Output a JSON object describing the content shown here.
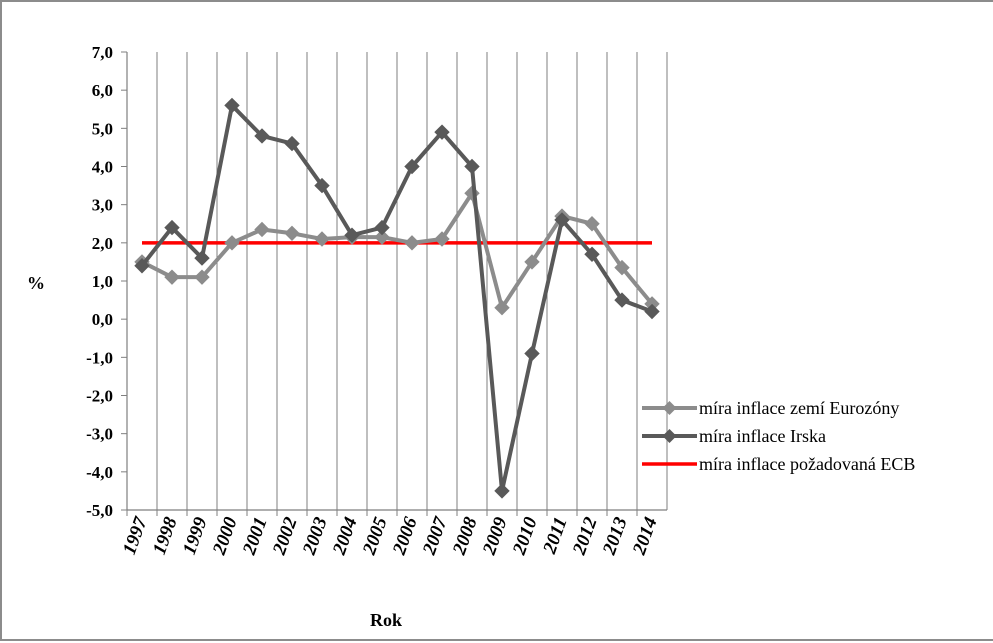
{
  "chart_data": {
    "type": "line",
    "title": "",
    "xlabel": "Rok",
    "ylabel": "%",
    "ylim": [
      -5.0,
      7.0
    ],
    "ytick_step": 1.0,
    "yticks": [
      "7,0",
      "6,0",
      "5,0",
      "4,0",
      "3,0",
      "2,0",
      "1,0",
      "0,0",
      "-1,0",
      "-2,0",
      "-3,0",
      "-4,0",
      "-5,0"
    ],
    "x": [
      "1997",
      "1998",
      "1999",
      "2000",
      "2001",
      "2002",
      "2003",
      "2004",
      "2005",
      "2006",
      "2007",
      "2008",
      "2009",
      "2010",
      "2011",
      "2012",
      "2013",
      "2014"
    ],
    "grid": "vertical",
    "legend_position": "right",
    "series": [
      {
        "name": "míra inflace zemí Eurozóny",
        "color": "#8c8c8c",
        "marker": "diamond",
        "values": [
          1.5,
          1.1,
          1.1,
          2.0,
          2.35,
          2.25,
          2.1,
          2.15,
          2.15,
          2.0,
          2.1,
          3.3,
          0.3,
          1.5,
          2.7,
          2.5,
          1.35,
          0.4
        ]
      },
      {
        "name": "míra inflace Irska",
        "color": "#595959",
        "marker": "diamond",
        "values": [
          1.4,
          2.4,
          1.6,
          5.6,
          4.8,
          4.6,
          3.5,
          2.2,
          2.4,
          4.0,
          4.9,
          4.0,
          -4.5,
          -0.9,
          2.6,
          1.7,
          0.5,
          0.2
        ]
      },
      {
        "name": "míra inflace požadovaná ECB",
        "color": "#ff0000",
        "marker": "none",
        "values": [
          2.0,
          2.0,
          2.0,
          2.0,
          2.0,
          2.0,
          2.0,
          2.0,
          2.0,
          2.0,
          2.0,
          2.0,
          2.0,
          2.0,
          2.0,
          2.0,
          2.0,
          2.0
        ]
      }
    ]
  }
}
